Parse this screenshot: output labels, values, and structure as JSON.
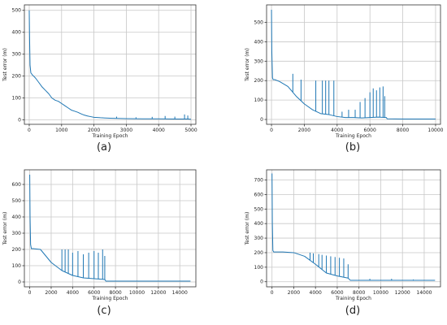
{
  "chart_data": [
    {
      "type": "line",
      "caption": "(a)",
      "xlabel": "Training Epoch",
      "ylabel": "Test error (m)",
      "xlim": [
        -150,
        5150
      ],
      "ylim": [
        -20,
        525
      ],
      "xticks": [
        0,
        1000,
        2000,
        3000,
        4000,
        5000
      ],
      "yticks": [
        0,
        100,
        200,
        300,
        400,
        500
      ],
      "grid": true,
      "color": "#1f77b4",
      "series": [
        {
          "x": [
            0,
            10,
            25,
            50,
            100,
            150,
            200,
            300,
            400,
            500,
            600,
            700,
            800,
            900,
            1000,
            1100,
            1200,
            1300,
            1400,
            1500,
            1600,
            1700,
            1800,
            1900,
            2000,
            2200,
            2500,
            3000,
            3500,
            4000,
            4500,
            4900,
            5000
          ],
          "y": [
            500,
            380,
            250,
            215,
            205,
            198,
            190,
            170,
            150,
            135,
            120,
            100,
            90,
            85,
            75,
            65,
            55,
            45,
            40,
            35,
            28,
            22,
            18,
            15,
            12,
            10,
            8,
            6,
            5,
            5,
            4,
            4,
            3
          ],
          "spikes": [
            [
              2700,
              15
            ],
            [
              3300,
              12
            ],
            [
              3800,
              14
            ],
            [
              4200,
              18
            ],
            [
              4500,
              15
            ],
            [
              4800,
              25
            ],
            [
              4900,
              20
            ]
          ]
        }
      ]
    },
    {
      "type": "line",
      "caption": "(b)",
      "xlabel": "Training Epoch",
      "ylabel": "Test error (m)",
      "xlim": [
        -300,
        10300
      ],
      "ylim": [
        -25,
        590
      ],
      "xticks": [
        0,
        2000,
        4000,
        6000,
        8000,
        10000
      ],
      "yticks": [
        0,
        100,
        200,
        300,
        400,
        500
      ],
      "grid": true,
      "color": "#1f77b4",
      "series": [
        {
          "x": [
            0,
            20,
            60,
            100,
            200,
            500,
            1000,
            1500,
            2000,
            2500,
            3000,
            3500,
            4000,
            4500,
            5000,
            5500,
            6000,
            6500,
            7000,
            7050,
            8000,
            9000,
            10000
          ],
          "y": [
            565,
            350,
            215,
            205,
            205,
            195,
            170,
            120,
            80,
            50,
            30,
            25,
            15,
            10,
            10,
            8,
            10,
            12,
            10,
            3,
            2,
            2,
            2
          ],
          "spikes": [
            [
              1300,
              235
            ],
            [
              1800,
              205
            ],
            [
              2700,
              200
            ],
            [
              3100,
              200
            ],
            [
              3300,
              200
            ],
            [
              3500,
              200
            ],
            [
              3800,
              200
            ],
            [
              4300,
              40
            ],
            [
              4700,
              50
            ],
            [
              5100,
              50
            ],
            [
              5400,
              90
            ],
            [
              5700,
              110
            ],
            [
              6000,
              140
            ],
            [
              6200,
              160
            ],
            [
              6400,
              150
            ],
            [
              6600,
              165
            ],
            [
              6800,
              170
            ],
            [
              6900,
              120
            ]
          ]
        }
      ]
    },
    {
      "type": "line",
      "caption": "(c)",
      "xlabel": "Training Epoch",
      "ylabel": "Test error (m)",
      "xlim": [
        -500,
        15500
      ],
      "ylim": [
        -30,
        690
      ],
      "xticks": [
        0,
        2000,
        4000,
        6000,
        8000,
        10000,
        12000,
        14000
      ],
      "yticks": [
        0,
        100,
        200,
        300,
        400,
        500,
        600
      ],
      "grid": true,
      "color": "#1f77b4",
      "series": [
        {
          "x": [
            0,
            30,
            80,
            150,
            300,
            1000,
            1500,
            2000,
            3000,
            4000,
            5000,
            6000,
            7000,
            7100,
            8000,
            10000,
            12000,
            15000
          ],
          "y": [
            660,
            400,
            230,
            205,
            205,
            200,
            160,
            120,
            70,
            40,
            25,
            20,
            15,
            5,
            5,
            5,
            5,
            5
          ],
          "spikes": [
            [
              3000,
              200
            ],
            [
              3300,
              200
            ],
            [
              3600,
              200
            ],
            [
              4000,
              180
            ],
            [
              4500,
              190
            ],
            [
              5000,
              170
            ],
            [
              5500,
              180
            ],
            [
              6000,
              190
            ],
            [
              6400,
              180
            ],
            [
              6800,
              200
            ],
            [
              7000,
              160
            ]
          ]
        }
      ]
    },
    {
      "type": "line",
      "caption": "(d)",
      "xlabel": "Training Epoch",
      "ylabel": "Test error (m)",
      "xlim": [
        -500,
        15500
      ],
      "ylim": [
        -35,
        770
      ],
      "xticks": [
        0,
        2000,
        4000,
        6000,
        8000,
        10000,
        12000,
        14000
      ],
      "yticks": [
        0,
        100,
        200,
        300,
        400,
        500,
        600,
        700
      ],
      "grid": true,
      "color": "#1f77b4",
      "series": [
        {
          "x": [
            0,
            30,
            80,
            150,
            300,
            1000,
            2000,
            3000,
            4000,
            5000,
            6000,
            7000,
            7200,
            8000,
            10000,
            12000,
            15000
          ],
          "y": [
            745,
            400,
            215,
            205,
            205,
            205,
            200,
            175,
            120,
            60,
            40,
            25,
            10,
            10,
            10,
            10,
            10
          ],
          "spikes": [
            [
              3500,
              200
            ],
            [
              3800,
              195
            ],
            [
              4300,
              190
            ],
            [
              4600,
              185
            ],
            [
              5000,
              180
            ],
            [
              5400,
              175
            ],
            [
              5800,
              170
            ],
            [
              6200,
              165
            ],
            [
              6600,
              160
            ],
            [
              7000,
              120
            ],
            [
              9000,
              20
            ],
            [
              11000,
              20
            ],
            [
              13000,
              15
            ]
          ]
        }
      ]
    }
  ]
}
